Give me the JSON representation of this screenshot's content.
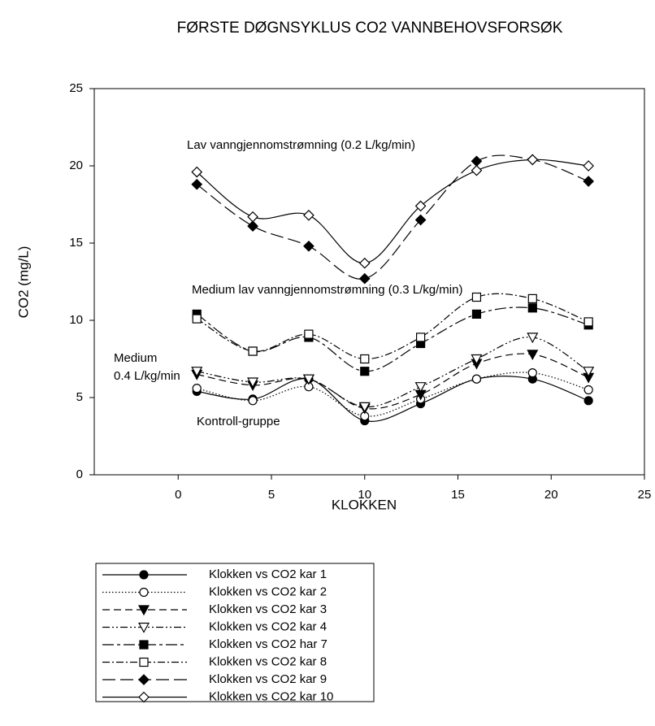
{
  "chart_data": {
    "type": "line",
    "title": "FØRSTE DØGNSYKLUS CO2 VANNBEHOVSFORSØK",
    "x_label": "KLOKKEN",
    "y_label": "CO2 (mg/L)",
    "x": [
      1,
      4,
      7,
      10,
      13,
      16,
      19,
      22
    ],
    "xlim": [
      -4.5,
      25
    ],
    "xticks": [
      0,
      5,
      10,
      15,
      20,
      25
    ],
    "ylim": [
      0,
      25
    ],
    "yticks": [
      0,
      5,
      10,
      15,
      20,
      25
    ],
    "smooth": true,
    "series": [
      {
        "name": "Klokken vs CO2 kar 1",
        "color": "#000000",
        "dash": "solid",
        "marker": "circle",
        "filled": true,
        "values": [
          5.4,
          4.9,
          6.2,
          3.5,
          4.6,
          6.2,
          6.2,
          4.8
        ]
      },
      {
        "name": "Klokken vs CO2 kar 2",
        "color": "#000000",
        "dash": "dot",
        "marker": "circle",
        "filled": false,
        "values": [
          5.6,
          4.8,
          5.7,
          3.8,
          4.9,
          6.2,
          6.6,
          5.5
        ]
      },
      {
        "name": "Klokken vs CO2 kar 3",
        "color": "#000000",
        "dash": "dash",
        "marker": "triangle-down",
        "filled": true,
        "values": [
          6.5,
          5.8,
          6.2,
          4.3,
          5.2,
          7.2,
          7.8,
          6.3
        ]
      },
      {
        "name": "Klokken vs CO2 kar 4",
        "color": "#000000",
        "dash": "dashdotdot",
        "marker": "triangle-down",
        "filled": false,
        "values": [
          6.7,
          6.0,
          6.2,
          4.4,
          5.7,
          7.5,
          8.9,
          6.7
        ]
      },
      {
        "name": "Klokken vs CO2 har 7",
        "color": "#000000",
        "dash": "longdashshort",
        "marker": "square",
        "filled": true,
        "values": [
          10.4,
          8.0,
          8.9,
          6.7,
          8.5,
          10.4,
          10.8,
          9.7
        ]
      },
      {
        "name": "Klokken vs CO2 kar 8",
        "color": "#000000",
        "dash": "dashdot",
        "marker": "square",
        "filled": false,
        "values": [
          10.1,
          8.0,
          9.1,
          7.5,
          8.9,
          11.5,
          11.4,
          9.9
        ]
      },
      {
        "name": "Klokken vs CO2 kar 9",
        "color": "#000000",
        "dash": "longdash",
        "marker": "diamond",
        "filled": true,
        "values": [
          18.8,
          16.1,
          14.8,
          12.7,
          16.5,
          20.3,
          20.4,
          19.0
        ]
      },
      {
        "name": "Klokken vs CO2 kar 10",
        "color": "#000000",
        "dash": "solid",
        "marker": "diamond",
        "filled": false,
        "values": [
          19.6,
          16.7,
          16.8,
          13.7,
          17.4,
          19.7,
          20.4,
          20.0
        ]
      }
    ],
    "annotations": [
      "Lav vanngjennomstrømning (0.2 L/kg/min)",
      "Medium lav vanngjennomstrømning (0.3 L/kg/min)",
      "Medium",
      "0.4 L/kg/min",
      "Kontroll-gruppe"
    ]
  }
}
